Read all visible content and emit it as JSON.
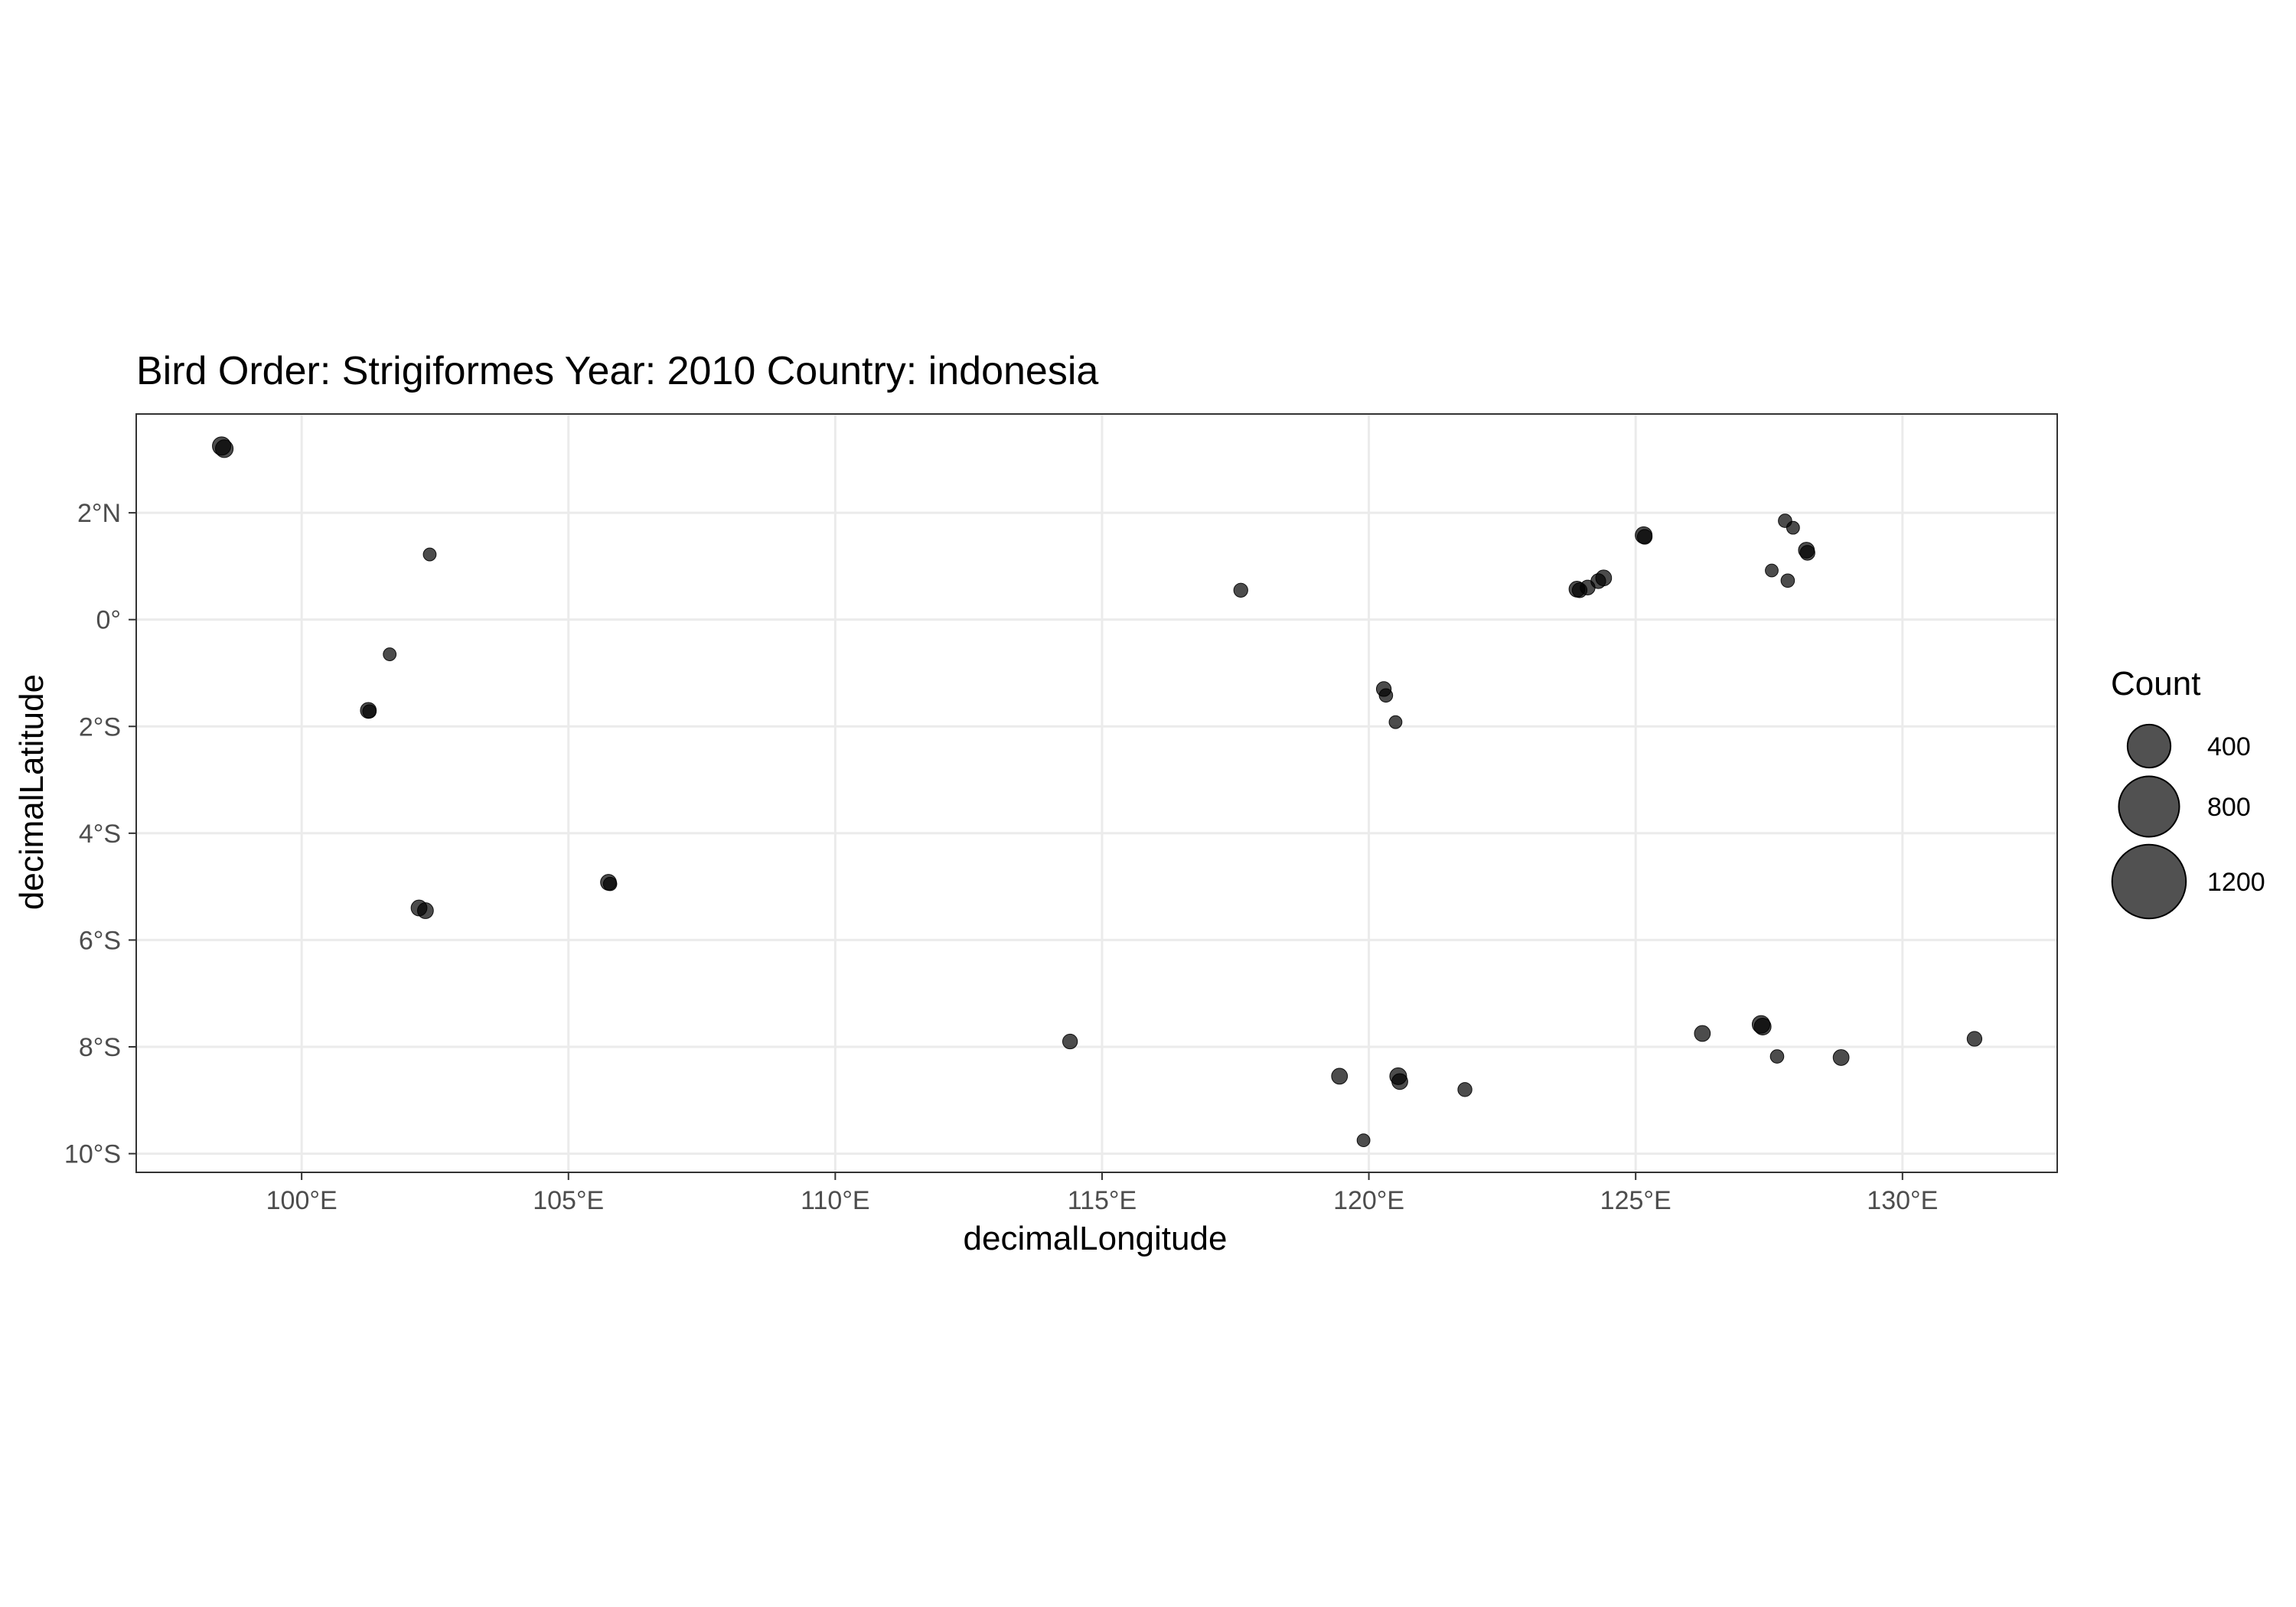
{
  "chart_data": {
    "type": "scatter",
    "title": "Bird Order: Strigiformes Year: 2010 Country: indonesia",
    "xlabel": "decimalLongitude",
    "ylabel": "decimalLatitude",
    "xlim": [
      96.9,
      132.9
    ],
    "ylim": [
      -10.35,
      3.85
    ],
    "x_ticks": [
      {
        "value": 100,
        "label": "100°E"
      },
      {
        "value": 105,
        "label": "105°E"
      },
      {
        "value": 110,
        "label": "110°E"
      },
      {
        "value": 115,
        "label": "115°E"
      },
      {
        "value": 120,
        "label": "120°E"
      },
      {
        "value": 125,
        "label": "125°E"
      },
      {
        "value": 130,
        "label": "130°E"
      }
    ],
    "y_ticks": [
      {
        "value": 2,
        "label": "2°N"
      },
      {
        "value": 0,
        "label": "0°"
      },
      {
        "value": -2,
        "label": "2°S"
      },
      {
        "value": -4,
        "label": "4°S"
      },
      {
        "value": -6,
        "label": "6°S"
      },
      {
        "value": -8,
        "label": "8°S"
      },
      {
        "value": -10,
        "label": "10°S"
      }
    ],
    "grid": true,
    "point_color": "#000000",
    "point_alpha": 0.7,
    "legend": {
      "title": "Count",
      "placement": "right",
      "entries": [
        {
          "value": 400,
          "label": "400"
        },
        {
          "value": 800,
          "label": "800"
        },
        {
          "value": 1200,
          "label": "1200"
        }
      ]
    },
    "points": [
      {
        "x": 98.5,
        "y": 3.25,
        "count": 40
      },
      {
        "x": 98.55,
        "y": 3.2,
        "count": 30
      },
      {
        "x": 102.4,
        "y": 1.22,
        "count": 8
      },
      {
        "x": 101.65,
        "y": -0.65,
        "count": 8
      },
      {
        "x": 101.25,
        "y": -1.7,
        "count": 20
      },
      {
        "x": 101.27,
        "y": -1.72,
        "count": 10
      },
      {
        "x": 102.2,
        "y": -5.4,
        "count": 20
      },
      {
        "x": 102.32,
        "y": -5.45,
        "count": 20
      },
      {
        "x": 105.75,
        "y": -4.92,
        "count": 20
      },
      {
        "x": 105.78,
        "y": -4.95,
        "count": 10
      },
      {
        "x": 114.4,
        "y": -7.9,
        "count": 15
      },
      {
        "x": 117.6,
        "y": 0.55,
        "count": 12
      },
      {
        "x": 120.28,
        "y": -1.3,
        "count": 15
      },
      {
        "x": 120.32,
        "y": -1.42,
        "count": 10
      },
      {
        "x": 120.5,
        "y": -1.92,
        "count": 8
      },
      {
        "x": 119.45,
        "y": -8.55,
        "count": 20
      },
      {
        "x": 119.9,
        "y": -9.75,
        "count": 8
      },
      {
        "x": 120.55,
        "y": -8.55,
        "count": 25
      },
      {
        "x": 120.58,
        "y": -8.65,
        "count": 20
      },
      {
        "x": 121.8,
        "y": -8.8,
        "count": 12
      },
      {
        "x": 123.9,
        "y": 0.57,
        "count": 20
      },
      {
        "x": 123.95,
        "y": 0.55,
        "count": 15
      },
      {
        "x": 124.1,
        "y": 0.6,
        "count": 15
      },
      {
        "x": 124.3,
        "y": 0.72,
        "count": 15
      },
      {
        "x": 124.4,
        "y": 0.78,
        "count": 20
      },
      {
        "x": 125.15,
        "y": 1.58,
        "count": 25
      },
      {
        "x": 125.17,
        "y": 1.55,
        "count": 15
      },
      {
        "x": 127.8,
        "y": 1.85,
        "count": 10
      },
      {
        "x": 127.95,
        "y": 1.72,
        "count": 8
      },
      {
        "x": 128.2,
        "y": 1.3,
        "count": 20
      },
      {
        "x": 128.22,
        "y": 1.25,
        "count": 15
      },
      {
        "x": 127.55,
        "y": 0.92,
        "count": 8
      },
      {
        "x": 127.85,
        "y": 0.73,
        "count": 10
      },
      {
        "x": 126.25,
        "y": -7.75,
        "count": 20
      },
      {
        "x": 127.35,
        "y": -7.58,
        "count": 30
      },
      {
        "x": 127.38,
        "y": -7.62,
        "count": 25
      },
      {
        "x": 127.65,
        "y": -8.18,
        "count": 10
      },
      {
        "x": 128.85,
        "y": -8.2,
        "count": 20
      },
      {
        "x": 131.35,
        "y": -7.85,
        "count": 15
      }
    ]
  }
}
